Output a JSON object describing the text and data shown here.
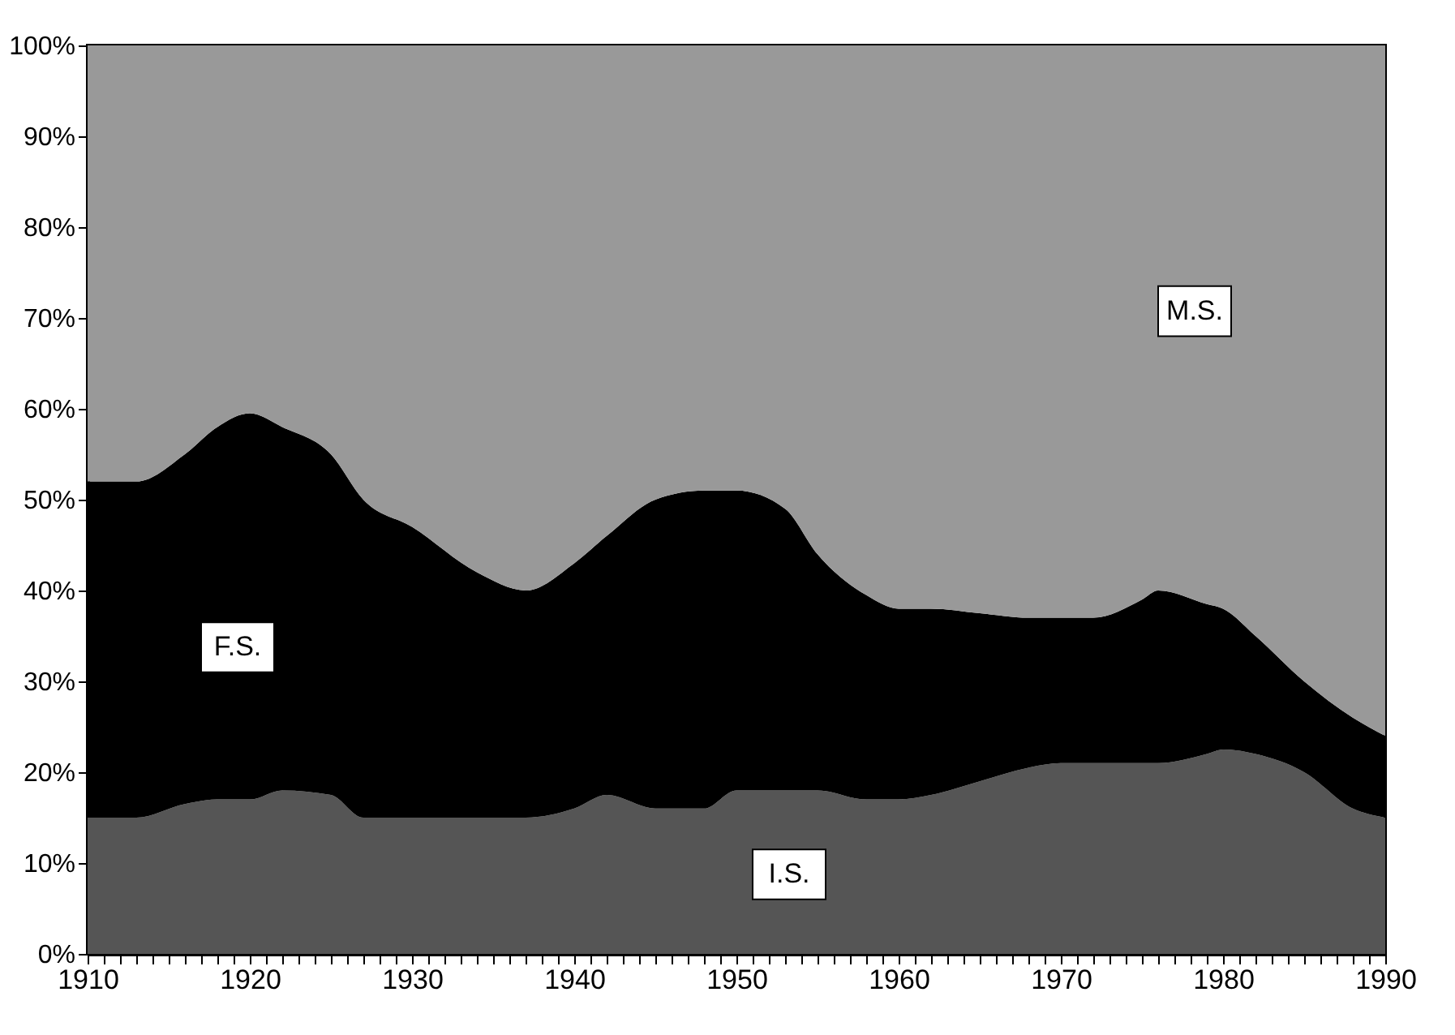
{
  "chart_data": {
    "type": "area",
    "stacked": true,
    "legend": false,
    "grid": false,
    "x": [
      1910,
      1913,
      1916,
      1918,
      1920,
      1922,
      1925,
      1927,
      1930,
      1934,
      1937,
      1940,
      1942,
      1945,
      1948,
      1950,
      1953,
      1955,
      1958,
      1960,
      1962,
      1965,
      1968,
      1970,
      1972,
      1975,
      1976,
      1979,
      1980,
      1982,
      1985,
      1988,
      1990
    ],
    "series": [
      {
        "name": "I.S.",
        "color": "#555555",
        "values": [
          15,
          15,
          16.5,
          17,
          17,
          18,
          17.5,
          15,
          15,
          15,
          15,
          16,
          17.5,
          16,
          16,
          18,
          18,
          18,
          17,
          17,
          17.5,
          19,
          20.5,
          21,
          21,
          21,
          21,
          22,
          22.5,
          22,
          20,
          16,
          15
        ]
      },
      {
        "name": "F.S.",
        "color": "#000000",
        "values": [
          37,
          37,
          38.5,
          41,
          42.5,
          40,
          37.5,
          35,
          32,
          27,
          25,
          27,
          28.5,
          34,
          35,
          33,
          31,
          26,
          22.5,
          21,
          20.5,
          18.5,
          16.5,
          16,
          16,
          18,
          19,
          16.5,
          15.5,
          13,
          10,
          10,
          9
        ]
      },
      {
        "name": "M.S.",
        "color": "#999999",
        "values": [
          48,
          48,
          45,
          42,
          40.5,
          42,
          45,
          50,
          53,
          58,
          60,
          57,
          54,
          50,
          49,
          49,
          51,
          56,
          60.5,
          62,
          62,
          62.5,
          63,
          63,
          63,
          61,
          60,
          61.5,
          62,
          65,
          70,
          74,
          76
        ]
      }
    ],
    "xlim": [
      1910,
      1990
    ],
    "xticks": [
      1910,
      {
        "value": 1911,
        "label": null
      },
      {
        "value": 1912,
        "label": null
      },
      {
        "value": 1913,
        "label": null
      },
      {
        "value": 1914,
        "label": null
      },
      {
        "value": 1915,
        "label": null
      },
      {
        "value": 1916,
        "label": null
      },
      {
        "value": 1917,
        "label": null
      },
      {
        "value": 1918,
        "label": null
      },
      {
        "value": 1919,
        "label": null
      },
      1920,
      {
        "value": 1921,
        "label": null
      },
      {
        "value": 1922,
        "label": null
      },
      {
        "value": 1923,
        "label": null
      },
      {
        "value": 1924,
        "label": null
      },
      {
        "value": 1925,
        "label": null
      },
      {
        "value": 1926,
        "label": null
      },
      {
        "value": 1927,
        "label": null
      },
      {
        "value": 1928,
        "label": null
      },
      {
        "value": 1929,
        "label": null
      },
      1930,
      {
        "value": 1931,
        "label": null
      },
      {
        "value": 1932,
        "label": null
      },
      {
        "value": 1933,
        "label": null
      },
      {
        "value": 1934,
        "label": null
      },
      {
        "value": 1935,
        "label": null
      },
      {
        "value": 1936,
        "label": null
      },
      {
        "value": 1937,
        "label": null
      },
      {
        "value": 1938,
        "label": null
      },
      {
        "value": 1939,
        "label": null
      },
      1940,
      {
        "value": 1941,
        "label": null
      },
      {
        "value": 1942,
        "label": null
      },
      {
        "value": 1943,
        "label": null
      },
      {
        "value": 1944,
        "label": null
      },
      {
        "value": 1945,
        "label": null
      },
      {
        "value": 1946,
        "label": null
      },
      {
        "value": 1947,
        "label": null
      },
      {
        "value": 1948,
        "label": null
      },
      {
        "value": 1949,
        "label": null
      },
      1950,
      {
        "value": 1951,
        "label": null
      },
      {
        "value": 1952,
        "label": null
      },
      {
        "value": 1953,
        "label": null
      },
      {
        "value": 1954,
        "label": null
      },
      {
        "value": 1955,
        "label": null
      },
      {
        "value": 1956,
        "label": null
      },
      {
        "value": 1957,
        "label": null
      },
      {
        "value": 1958,
        "label": null
      },
      {
        "value": 1959,
        "label": null
      },
      1960,
      {
        "value": 1961,
        "label": null
      },
      {
        "value": 1962,
        "label": null
      },
      {
        "value": 1963,
        "label": null
      },
      {
        "value": 1964,
        "label": null
      },
      {
        "value": 1965,
        "label": null
      },
      {
        "value": 1966,
        "label": null
      },
      {
        "value": 1967,
        "label": null
      },
      {
        "value": 1968,
        "label": null
      },
      {
        "value": 1969,
        "label": null
      },
      1970,
      {
        "value": 1971,
        "label": null
      },
      {
        "value": 1972,
        "label": null
      },
      {
        "value": 1973,
        "label": null
      },
      {
        "value": 1974,
        "label": null
      },
      {
        "value": 1975,
        "label": null
      },
      {
        "value": 1976,
        "label": null
      },
      {
        "value": 1977,
        "label": null
      },
      {
        "value": 1978,
        "label": null
      },
      {
        "value": 1979,
        "label": null
      },
      1980,
      {
        "value": 1981,
        "label": null
      },
      {
        "value": 1982,
        "label": null
      },
      {
        "value": 1983,
        "label": null
      },
      {
        "value": 1984,
        "label": null
      },
      {
        "value": 1985,
        "label": null
      },
      {
        "value": 1986,
        "label": null
      },
      {
        "value": 1987,
        "label": null
      },
      {
        "value": 1988,
        "label": null
      },
      {
        "value": 1989,
        "label": null
      },
      1990
    ],
    "ylim": [
      0,
      100
    ],
    "yticks": [
      {
        "value": 0,
        "label": "0%"
      },
      {
        "value": 10,
        "label": "10%"
      },
      {
        "value": 20,
        "label": "20%"
      },
      {
        "value": 30,
        "label": "30%"
      },
      {
        "value": 40,
        "label": "40%"
      },
      {
        "value": 50,
        "label": "50%"
      },
      {
        "value": 60,
        "label": "60%"
      },
      {
        "value": 70,
        "label": "70%"
      },
      {
        "value": 80,
        "label": "80%"
      },
      {
        "value": 90,
        "label": "90%"
      },
      {
        "value": 100,
        "label": "100%"
      }
    ]
  }
}
